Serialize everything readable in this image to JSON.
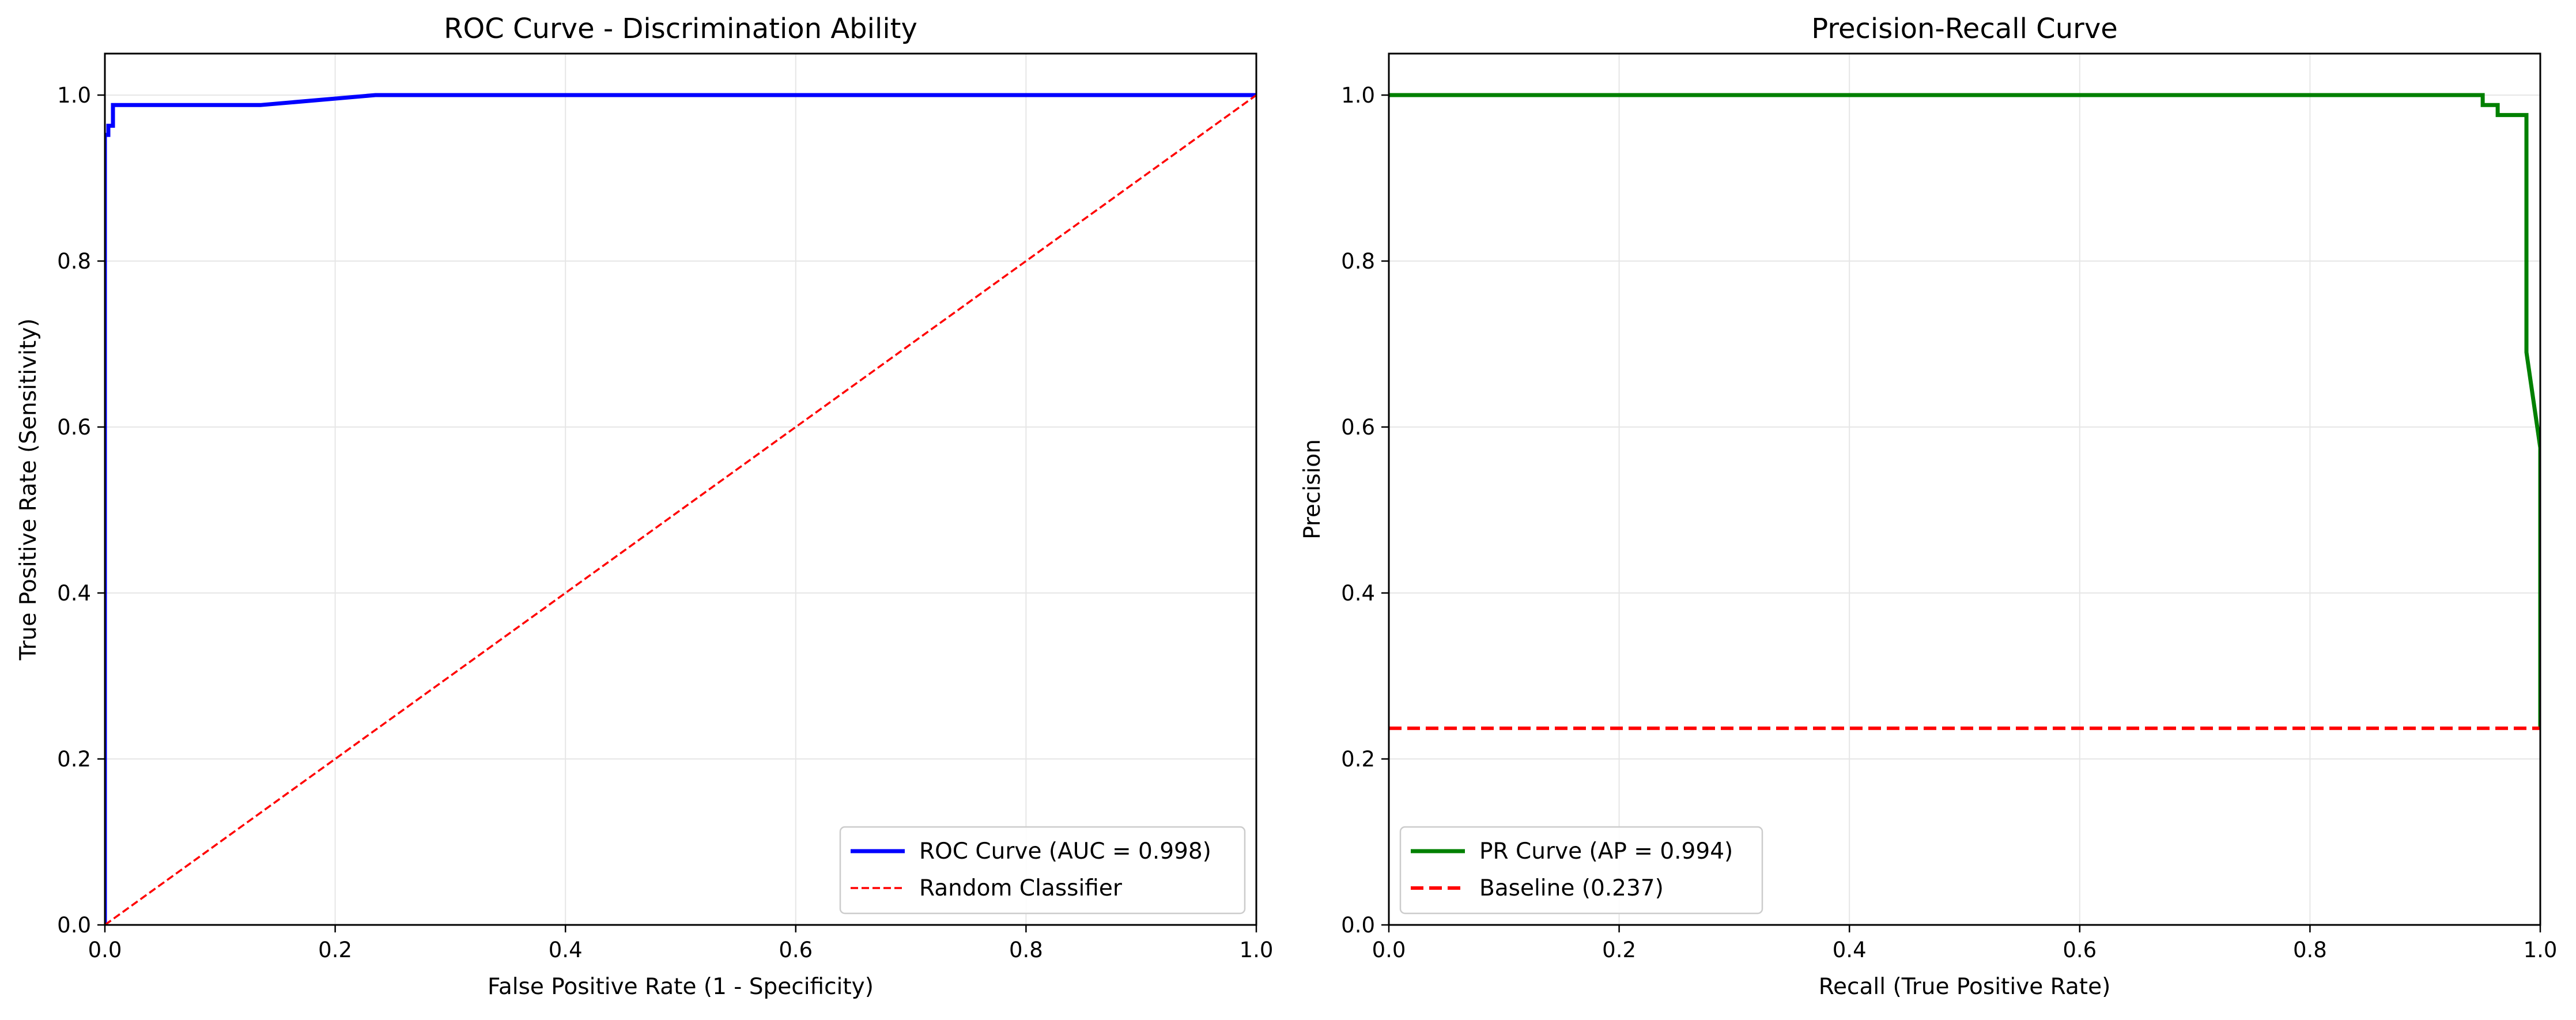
{
  "chart_data": [
    {
      "type": "line",
      "title": "ROC Curve - Discrimination Ability",
      "xlabel": "False Positive Rate (1 - Specificity)",
      "ylabel": "True Positive Rate (Sensitivity)",
      "xlim": [
        0,
        1
      ],
      "ylim": [
        0,
        1.05
      ],
      "xticks": [
        "0.0",
        "0.2",
        "0.4",
        "0.6",
        "0.8",
        "1.0"
      ],
      "yticks": [
        "0.0",
        "0.2",
        "0.4",
        "0.6",
        "0.8",
        "1.0"
      ],
      "grid": true,
      "legend_position": "lower-right",
      "series": [
        {
          "name": "ROC Curve (AUC = 0.998)",
          "color": "#0000ff",
          "style": "solid",
          "x": [
            0,
            0,
            0.003,
            0.003,
            0.007,
            0.007,
            0.135,
            0.235,
            1.0
          ],
          "y": [
            0,
            0.952,
            0.952,
            0.963,
            0.963,
            0.988,
            0.988,
            1.0,
            1.0
          ]
        },
        {
          "name": "Random Classifier",
          "color": "#ff0000",
          "style": "dashed",
          "x": [
            0,
            1
          ],
          "y": [
            0,
            1
          ]
        }
      ]
    },
    {
      "type": "line",
      "title": "Precision-Recall Curve",
      "xlabel": "Recall (True Positive Rate)",
      "ylabel": "Precision",
      "xlim": [
        0,
        1
      ],
      "ylim": [
        0,
        1.05
      ],
      "xticks": [
        "0.0",
        "0.2",
        "0.4",
        "0.6",
        "0.8",
        "1.0"
      ],
      "yticks": [
        "0.0",
        "0.2",
        "0.4",
        "0.6",
        "0.8",
        "1.0"
      ],
      "grid": true,
      "legend_position": "lower-left",
      "series": [
        {
          "name": "PR Curve (AP = 0.994)",
          "color": "#008000",
          "style": "solid",
          "x": [
            0,
            0.95,
            0.95,
            0.963,
            0.963,
            0.988,
            0.988,
            1.0,
            1.0
          ],
          "y": [
            1.0,
            1.0,
            0.988,
            0.988,
            0.976,
            0.976,
            0.69,
            0.575,
            0.237
          ]
        },
        {
          "name": "Baseline (0.237)",
          "color": "#ff0000",
          "style": "dashed",
          "x": [
            0,
            1
          ],
          "y": [
            0.237,
            0.237
          ]
        }
      ]
    }
  ]
}
